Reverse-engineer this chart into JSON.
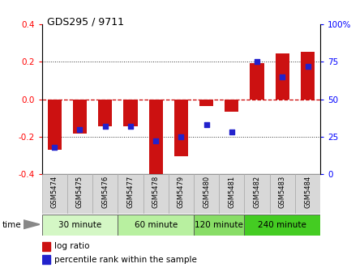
{
  "title": "GDS295 / 9711",
  "samples": [
    "GSM5474",
    "GSM5475",
    "GSM5476",
    "GSM5477",
    "GSM5478",
    "GSM5479",
    "GSM5480",
    "GSM5481",
    "GSM5482",
    "GSM5483",
    "GSM5484"
  ],
  "log_ratio": [
    -0.27,
    -0.185,
    -0.145,
    -0.145,
    -0.43,
    -0.305,
    -0.038,
    -0.065,
    0.195,
    0.245,
    0.255
  ],
  "percentile": [
    18,
    30,
    32,
    32,
    22,
    25,
    33,
    28,
    75,
    65,
    72
  ],
  "time_groups": [
    {
      "label": "30 minute",
      "start": 0,
      "end": 3,
      "color": "#d4f7c5"
    },
    {
      "label": "60 minute",
      "start": 3,
      "end": 6,
      "color": "#b8f0a0"
    },
    {
      "label": "120 minute",
      "start": 6,
      "end": 8,
      "color": "#88dd66"
    },
    {
      "label": "240 minute",
      "start": 8,
      "end": 11,
      "color": "#44cc22"
    }
  ],
  "bar_color": "#cc1111",
  "dot_color": "#2222cc",
  "ylim_left": [
    -0.4,
    0.4
  ],
  "ylim_right": [
    0,
    100
  ],
  "yticks_left": [
    -0.4,
    -0.2,
    0.0,
    0.2,
    0.4
  ],
  "yticks_right": [
    0,
    25,
    50,
    75,
    100
  ],
  "bar_width": 0.55,
  "bg_color": "#ffffff"
}
